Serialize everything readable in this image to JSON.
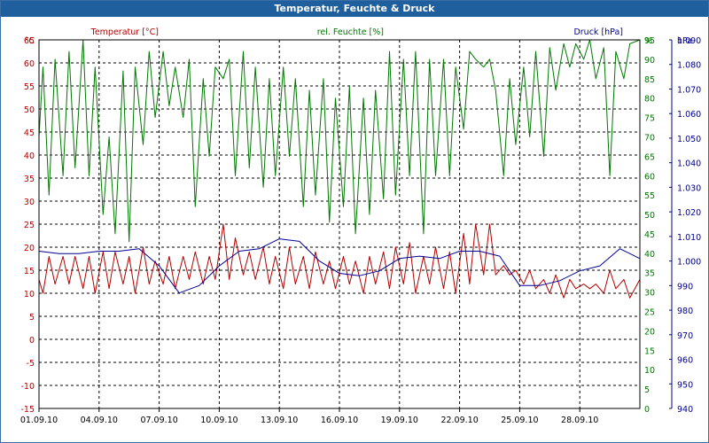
{
  "window": {
    "title": "Temperatur, Feuchte & Druck"
  },
  "colors": {
    "temp": "#b40000",
    "hum": "#007800",
    "press": "#000096",
    "grid": "#000000"
  },
  "chart_data": {
    "type": "line",
    "title": "Temperatur, Feuchte & Druck",
    "x_start": "01.09.10",
    "x_days": 30,
    "x_ticks": [
      "01.09.10",
      "04.09.10",
      "07.09.10",
      "10.09.10",
      "13.09.10",
      "16.09.10",
      "19.09.10",
      "22.09.10",
      "25.09.10",
      "28.09.10"
    ],
    "axes": {
      "temperature": {
        "label": "Temperatur [°C]",
        "unit": "°C",
        "range": [
          -15,
          65
        ],
        "ticks": [
          -15,
          -10,
          -5,
          0,
          5,
          10,
          15,
          20,
          25,
          30,
          35,
          40,
          45,
          50,
          55,
          60,
          65
        ]
      },
      "humidity": {
        "label": "rel. Feuchte [%]",
        "unit": "%",
        "range": [
          0,
          95
        ],
        "ticks": [
          0,
          5,
          10,
          15,
          20,
          25,
          30,
          35,
          40,
          45,
          50,
          55,
          60,
          65,
          70,
          75,
          80,
          85,
          90,
          95
        ]
      },
      "pressure": {
        "label": "Druck [hPa]",
        "unit": "hPa",
        "range": [
          940,
          1090
        ],
        "ticks": [
          "940",
          "950",
          "960",
          "970",
          "980",
          "990",
          "1.000",
          "1.010",
          "1.020",
          "1.030",
          "1.040",
          "1.050",
          "1.060",
          "1.070",
          "1.080",
          "1.090"
        ]
      }
    },
    "series": [
      {
        "name": "Temperatur",
        "axis": "temperature",
        "x": [
          0,
          0.2,
          0.5,
          0.8,
          1.2,
          1.5,
          1.8,
          2.2,
          2.5,
          2.8,
          3.2,
          3.5,
          3.8,
          4.2,
          4.5,
          4.8,
          5.2,
          5.5,
          5.8,
          6.2,
          6.5,
          6.8,
          7.2,
          7.5,
          7.8,
          8.2,
          8.5,
          8.8,
          9.2,
          9.5,
          9.8,
          10.2,
          10.5,
          10.8,
          11.2,
          11.5,
          11.8,
          12.2,
          12.5,
          12.8,
          13.2,
          13.5,
          13.8,
          14.2,
          14.5,
          14.8,
          15.2,
          15.5,
          15.8,
          16.2,
          16.5,
          16.8,
          17.2,
          17.5,
          17.8,
          18.2,
          18.5,
          18.8,
          19.2,
          19.5,
          19.8,
          20.2,
          20.5,
          20.8,
          21.2,
          21.5,
          21.8,
          22.2,
          22.5,
          22.8,
          23.2,
          23.5,
          23.8,
          24.2,
          24.5,
          24.8,
          25.2,
          25.5,
          25.8,
          26.2,
          26.5,
          26.8,
          27.2,
          27.5,
          27.8,
          28.2,
          28.5,
          28.8,
          29.2,
          29.5,
          30
        ],
        "values": [
          13,
          10,
          18,
          12,
          18,
          12,
          18,
          11,
          18,
          10,
          19,
          11,
          19,
          12,
          18,
          10,
          20,
          12,
          17,
          12,
          18,
          11,
          18,
          13,
          19,
          12,
          18,
          13,
          25,
          13,
          22,
          14,
          19,
          13,
          20,
          12,
          18,
          11,
          20,
          12,
          18,
          11,
          19,
          12,
          17,
          11,
          18,
          12,
          17,
          10,
          18,
          12,
          19,
          11,
          20,
          12,
          21,
          10,
          18,
          12,
          20,
          11,
          19,
          10,
          23,
          12,
          25,
          14,
          25,
          14,
          16,
          14,
          15,
          12,
          15,
          11,
          13,
          10,
          14,
          9,
          13,
          11,
          12,
          11,
          12,
          10,
          15,
          11,
          13,
          9,
          13
        ]
      },
      {
        "name": "rel. Feuchte",
        "axis": "humidity",
        "x": [
          0,
          0.2,
          0.5,
          0.8,
          1.2,
          1.5,
          1.8,
          2.2,
          2.5,
          2.8,
          3.2,
          3.5,
          3.8,
          4.2,
          4.5,
          4.8,
          5.2,
          5.5,
          5.8,
          6.2,
          6.5,
          6.8,
          7.2,
          7.5,
          7.8,
          8.2,
          8.5,
          8.8,
          9.2,
          9.5,
          9.8,
          10.2,
          10.5,
          10.8,
          11.2,
          11.5,
          11.8,
          12.2,
          12.5,
          12.8,
          13.2,
          13.5,
          13.8,
          14.2,
          14.5,
          14.8,
          15.2,
          15.5,
          15.8,
          16.2,
          16.5,
          16.8,
          17.2,
          17.5,
          17.8,
          18.2,
          18.5,
          18.8,
          19.2,
          19.5,
          19.8,
          20.2,
          20.5,
          20.8,
          21.2,
          21.5,
          21.8,
          22.2,
          22.5,
          22.8,
          23.2,
          23.5,
          23.8,
          24.2,
          24.5,
          24.8,
          25.2,
          25.5,
          25.8,
          26.2,
          26.5,
          26.8,
          27.2,
          27.5,
          27.8,
          28.2,
          28.5,
          28.8,
          29.2,
          29.5,
          30
        ],
        "values": [
          70,
          88,
          55,
          90,
          60,
          92,
          62,
          95,
          60,
          88,
          50,
          70,
          45,
          87,
          43,
          88,
          68,
          92,
          75,
          92,
          78,
          88,
          75,
          90,
          52,
          85,
          65,
          88,
          85,
          90,
          60,
          92,
          62,
          88,
          57,
          85,
          60,
          88,
          65,
          85,
          52,
          82,
          55,
          85,
          48,
          80,
          52,
          83,
          45,
          80,
          50,
          82,
          54,
          92,
          55,
          90,
          60,
          92,
          45,
          90,
          60,
          90,
          60,
          88,
          72,
          92,
          90,
          88,
          90,
          82,
          60,
          85,
          68,
          88,
          70,
          92,
          65,
          93,
          82,
          94,
          88,
          94,
          90,
          95,
          85,
          93,
          60,
          92,
          85,
          94,
          95
        ]
      },
      {
        "name": "Druck",
        "axis": "pressure",
        "x": [
          0,
          1,
          2,
          3,
          4,
          5,
          6,
          7,
          8,
          9,
          10,
          11,
          12,
          13,
          14,
          15,
          16,
          17,
          18,
          19,
          20,
          21,
          22,
          23,
          24,
          25,
          26,
          27,
          28,
          29,
          30
        ],
        "values": [
          1004,
          1003,
          1003,
          1004,
          1004,
          1005,
          998,
          987,
          990,
          998,
          1004,
          1005,
          1009,
          1008,
          1000,
          995,
          994,
          996,
          1001,
          1002,
          1001,
          1004,
          1004,
          1002,
          990,
          990,
          992,
          996,
          998,
          1005,
          1001
        ]
      }
    ]
  }
}
